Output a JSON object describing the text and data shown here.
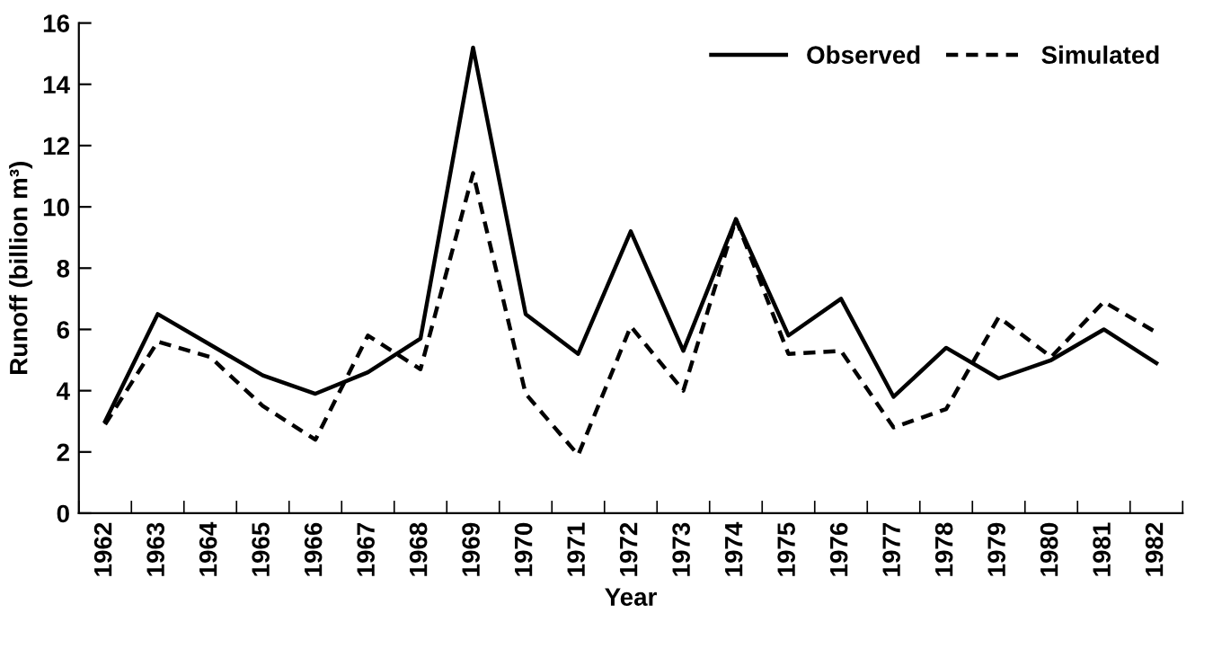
{
  "chart_data": {
    "type": "line",
    "xlabel": "Year",
    "ylabel": "Runoff (billion m³)",
    "categories": [
      "1962",
      "1963",
      "1964",
      "1965",
      "1966",
      "1967",
      "1968",
      "1969",
      "1970",
      "1971",
      "1972",
      "1973",
      "1974",
      "1975",
      "1976",
      "1977",
      "1978",
      "1979",
      "1980",
      "1981",
      "1982"
    ],
    "series": [
      {
        "name": "Observed",
        "color": "#000000",
        "line_style": "solid",
        "values": [
          3.0,
          6.5,
          5.5,
          4.5,
          3.9,
          4.6,
          5.7,
          15.2,
          6.5,
          5.2,
          9.2,
          5.3,
          9.6,
          5.8,
          7.0,
          3.8,
          5.4,
          4.4,
          5.0,
          6.0,
          4.9
        ]
      },
      {
        "name": "Simulated",
        "color": "#000000",
        "line_style": "dashed",
        "values": [
          2.9,
          5.6,
          5.1,
          3.5,
          2.4,
          5.8,
          4.7,
          11.1,
          3.9,
          1.9,
          6.1,
          4.0,
          9.6,
          5.2,
          5.3,
          2.8,
          3.4,
          6.4,
          5.1,
          6.9,
          5.9
        ]
      }
    ],
    "ylim": [
      0,
      16
    ],
    "yticks": [
      0,
      2,
      4,
      6,
      8,
      10,
      12,
      14,
      16
    ],
    "grid": false,
    "legend": "top right",
    "marker": "none"
  }
}
